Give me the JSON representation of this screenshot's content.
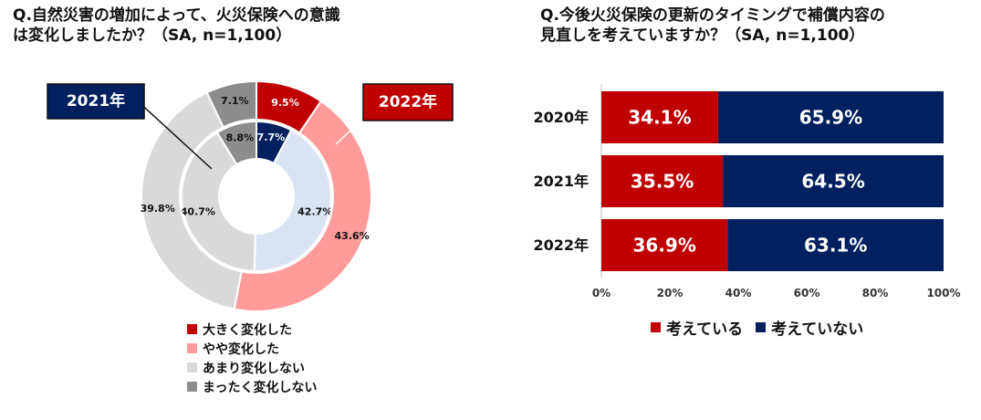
{
  "colors": {
    "red": "#c00000",
    "pink": "#ff9b9b",
    "light_gray": "#d9d9d9",
    "gray": "#8c8c8c",
    "navy": "#002060",
    "light_blue": "#dae3f3"
  },
  "left": {
    "title_lines": [
      "Q.自然災害の増加によって、火災保険への意識",
      "は変化しましたか？（SA, n=1,100）"
    ],
    "callout_2021": "2021年",
    "callout_2022": "2022年"
  },
  "right": {
    "title_lines": [
      "Q.今後火災保険の更新のタイミングで補償内容の",
      "見直しを考えていますか？（SA, n=1,100）"
    ]
  },
  "chart_data": [
    {
      "type": "pie",
      "subtype": "donut",
      "title": "Q.自然災害の増加によって、火災保険への意識は変化しましたか？（SA, n=1,100）",
      "categories": [
        "大きく変化した",
        "やや変化した",
        "あまり変化しない",
        "まったく変化しない"
      ],
      "series": [
        {
          "name": "2021年",
          "ring": "inner",
          "values": [
            7.7,
            42.7,
            40.7,
            8.8
          ],
          "labels": [
            "7.7%",
            "42.7%",
            "40.7%",
            "8.8%"
          ],
          "colors": [
            "#002060",
            "#dae3f3",
            "#d9d9d9",
            "#8c8c8c"
          ]
        },
        {
          "name": "2022年",
          "ring": "outer",
          "values": [
            9.5,
            43.6,
            39.8,
            7.1
          ],
          "labels": [
            "9.5%",
            "43.6%",
            "39.8%",
            "7.1%"
          ],
          "colors": [
            "#c00000",
            "#ff9b9b",
            "#d9d9d9",
            "#8c8c8c"
          ]
        }
      ],
      "legend": [
        {
          "label": "大きく変化した",
          "color": "#c00000"
        },
        {
          "label": "やや変化した",
          "color": "#ff9b9b"
        },
        {
          "label": "あまり変化しない",
          "color": "#d9d9d9"
        },
        {
          "label": "まったく変化しない",
          "color": "#8c8c8c"
        }
      ],
      "legend_position": "bottom"
    },
    {
      "type": "bar",
      "orientation": "horizontal",
      "stacked": true,
      "title": "Q.今後火災保険の更新のタイミングで補償内容の見直しを考えていますか？（SA, n=1,100）",
      "categories": [
        "2020年",
        "2021年",
        "2022年"
      ],
      "series": [
        {
          "name": "考えている",
          "values": [
            34.1,
            35.5,
            36.9
          ],
          "labels": [
            "34.1%",
            "35.5%",
            "36.9%"
          ],
          "color": "#c00000"
        },
        {
          "name": "考えていない",
          "values": [
            65.9,
            64.5,
            63.1
          ],
          "labels": [
            "65.9%",
            "64.5%",
            "63.1%"
          ],
          "color": "#002060"
        }
      ],
      "xlim": [
        0,
        100
      ],
      "xticks": [
        "0%",
        "20%",
        "40%",
        "60%",
        "80%",
        "100%"
      ],
      "legend_position": "bottom"
    }
  ]
}
